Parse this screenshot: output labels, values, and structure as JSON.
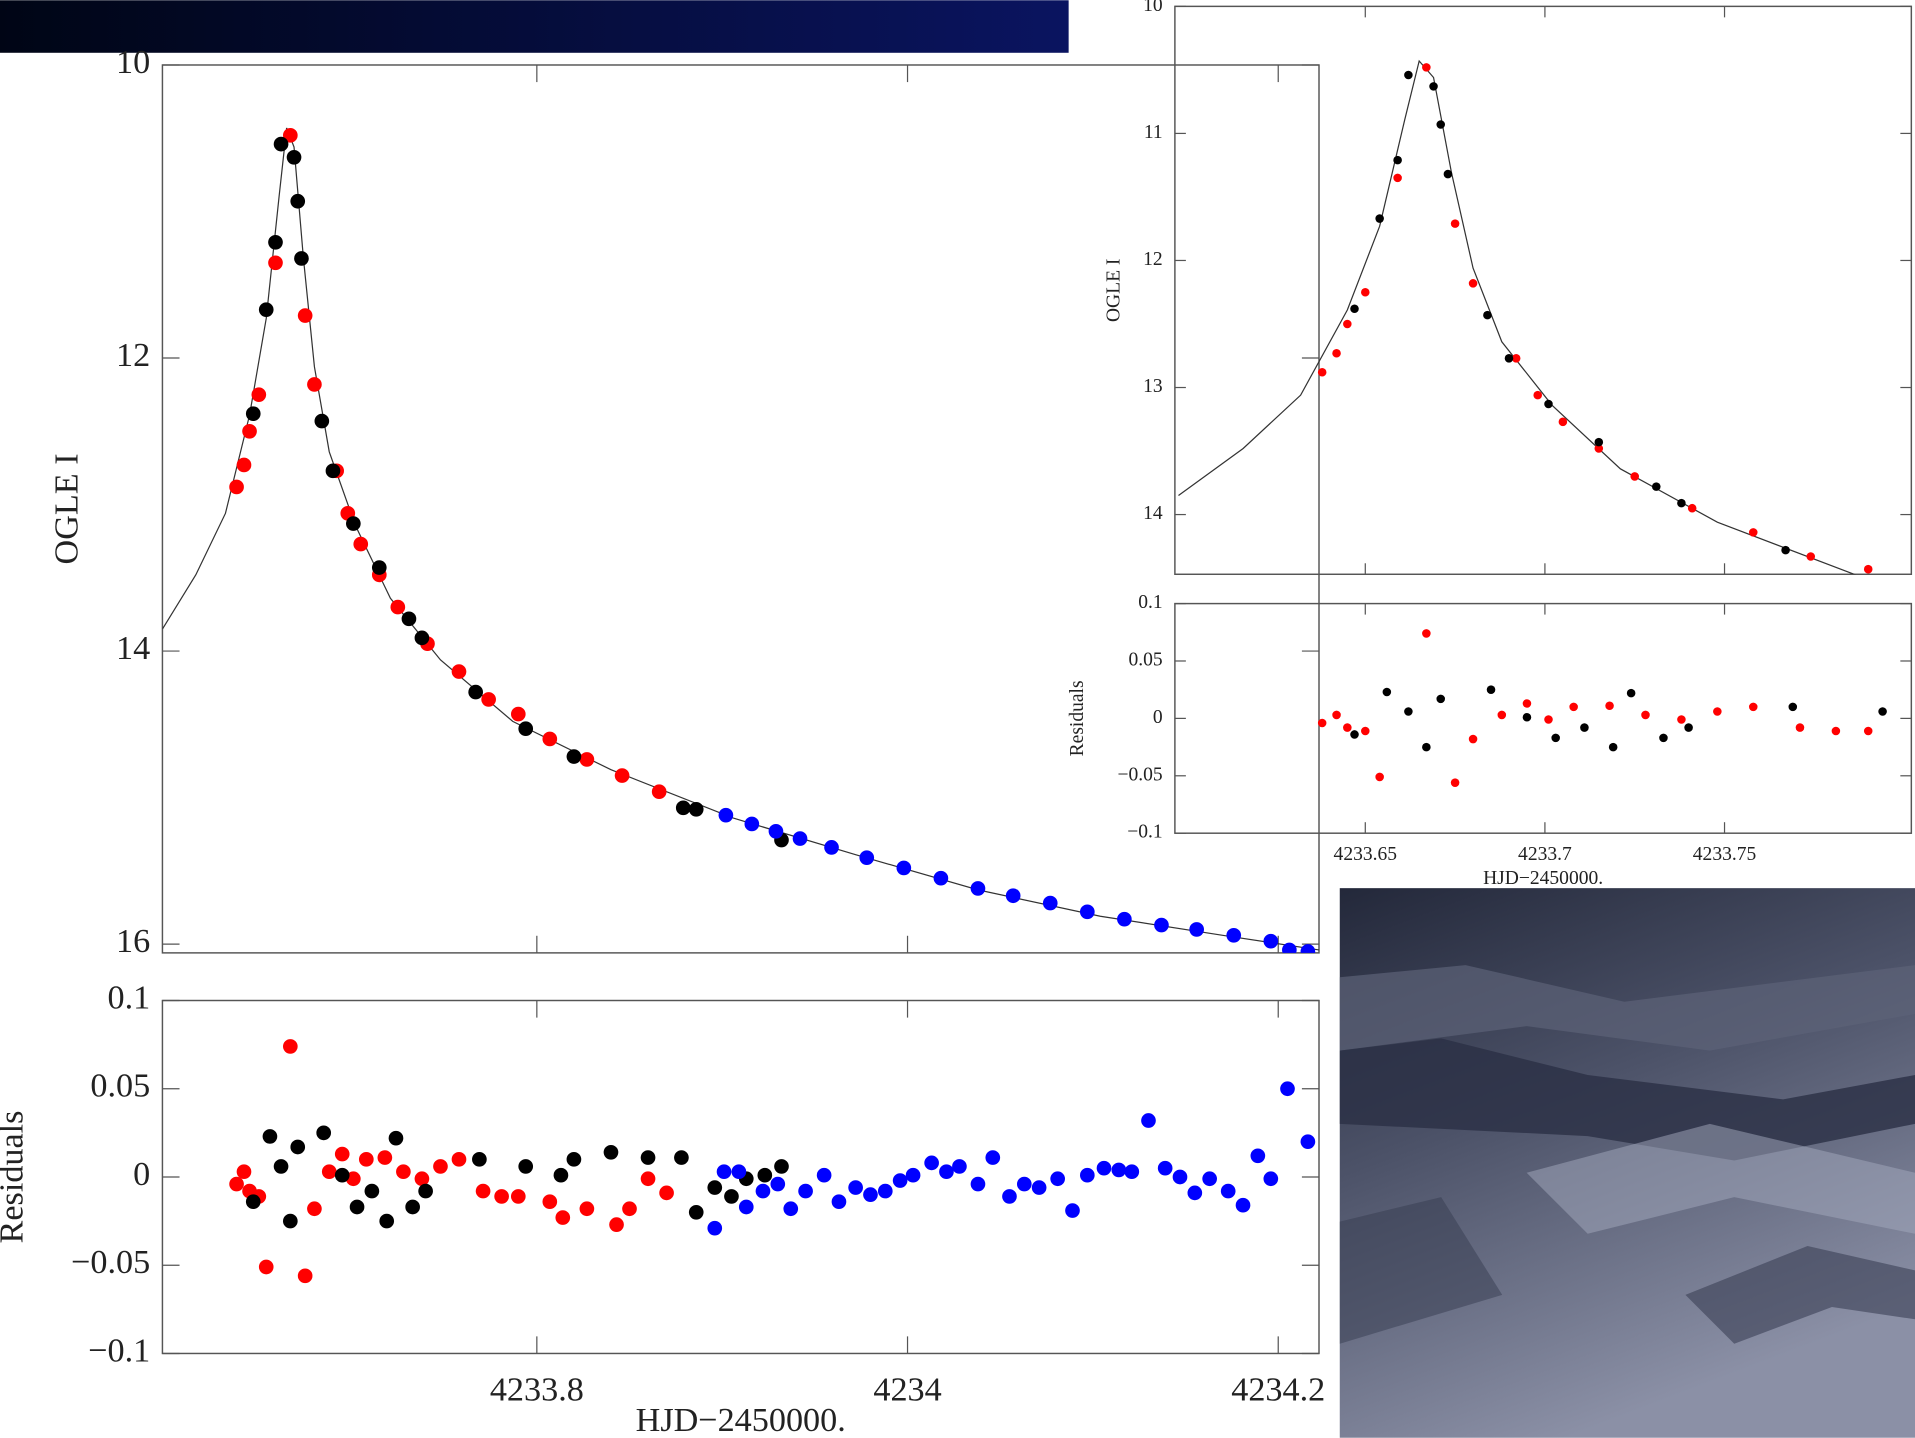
{
  "chart_data": [
    {
      "type": "scatter",
      "ylabel": "OGLE I",
      "xlim": [
        4233.598,
        4234.222
      ],
      "ylim": [
        10,
        16.06
      ],
      "y_inverted": true,
      "yticks": [
        10,
        12,
        14,
        16
      ],
      "series": [
        {
          "kind": "line",
          "color": "#333333",
          "x": [
            4233.598,
            4233.616,
            4233.632,
            4233.645,
            4233.654,
            4233.661,
            4233.665,
            4233.669,
            4233.674,
            4233.68,
            4233.688,
            4233.702,
            4233.721,
            4233.748,
            4233.787,
            4233.84,
            4233.906,
            4233.972,
            4234.038,
            4234.104,
            4234.17,
            4234.222
          ],
          "values": [
            13.85,
            13.48,
            13.06,
            12.39,
            11.73,
            10.89,
            10.43,
            10.56,
            11.31,
            12.06,
            12.64,
            13.14,
            13.64,
            14.06,
            14.48,
            14.81,
            15.14,
            15.39,
            15.63,
            15.81,
            15.94,
            16.04
          ]
        },
        {
          "kind": "points",
          "color": "#ff0000",
          "x": [
            4233.638,
            4233.642,
            4233.645,
            4233.65,
            4233.659,
            4233.667,
            4233.675,
            4233.68,
            4233.692,
            4233.698,
            4233.705,
            4233.715,
            4233.725,
            4233.741,
            4233.758,
            4233.774,
            4233.79,
            4233.807,
            4233.827,
            4233.846,
            4233.866
          ],
          "values": [
            12.88,
            12.73,
            12.5,
            12.25,
            11.35,
            10.48,
            11.71,
            12.18,
            12.77,
            13.06,
            13.27,
            13.48,
            13.7,
            13.95,
            14.14,
            14.33,
            14.43,
            14.6,
            14.74,
            14.85,
            14.96
          ]
        },
        {
          "kind": "points",
          "color": "#000000",
          "x": [
            4233.647,
            4233.654,
            4233.659,
            4233.662,
            4233.669,
            4233.671,
            4233.673,
            4233.684,
            4233.69,
            4233.701,
            4233.715,
            4233.731,
            4233.738,
            4233.767,
            4233.794,
            4233.82,
            4233.879,
            4233.886,
            4233.932
          ],
          "values": [
            12.38,
            11.67,
            11.21,
            10.54,
            10.63,
            10.93,
            11.32,
            12.43,
            12.77,
            13.13,
            13.43,
            13.78,
            13.91,
            14.28,
            14.53,
            14.72,
            15.07,
            15.08,
            15.29
          ]
        },
        {
          "kind": "points",
          "color": "#0000ff",
          "x": [
            4233.902,
            4233.916,
            4233.929,
            4233.942,
            4233.959,
            4233.978,
            4233.998,
            4234.018,
            4234.038,
            4234.057,
            4234.077,
            4234.097,
            4234.117,
            4234.137,
            4234.156,
            4234.176,
            4234.196,
            4234.206,
            4234.216
          ],
          "values": [
            15.12,
            15.18,
            15.23,
            15.28,
            15.34,
            15.41,
            15.48,
            15.55,
            15.62,
            15.67,
            15.72,
            15.78,
            15.83,
            15.87,
            15.9,
            15.94,
            15.98,
            16.04,
            16.05
          ]
        }
      ]
    },
    {
      "type": "scatter",
      "ylabel": "Residuals",
      "xlabel": "HJD−2450000.",
      "xlim": [
        4233.598,
        4234.222
      ],
      "ylim": [
        -0.1,
        0.1
      ],
      "xticks": [
        4233.8,
        4234,
        4234.2
      ],
      "yticks": [
        {
          "value": -0.1,
          "label": "−0.1"
        },
        {
          "value": -0.05,
          "label": "−0.05"
        },
        0,
        0.05,
        0.1
      ],
      "series": [
        {
          "kind": "points",
          "color": "#ff0000",
          "x": [
            4233.638,
            4233.642,
            4233.645,
            4233.65,
            4233.654,
            4233.667,
            4233.675,
            4233.68,
            4233.688,
            4233.695,
            4233.701,
            4233.708,
            4233.718,
            4233.728,
            4233.738,
            4233.748,
            4233.758,
            4233.771,
            4233.781,
            4233.79,
            4233.807,
            4233.814,
            4233.827,
            4233.843,
            4233.85,
            4233.86,
            4233.87
          ],
          "values": [
            -0.004,
            0.003,
            -0.008,
            -0.011,
            -0.051,
            0.074,
            -0.056,
            -0.018,
            0.003,
            0.013,
            -0.001,
            0.01,
            0.011,
            0.003,
            -0.001,
            0.006,
            0.01,
            -0.008,
            -0.011,
            -0.011,
            -0.014,
            -0.023,
            -0.018,
            -0.027,
            -0.018,
            -0.001,
            -0.009
          ]
        },
        {
          "kind": "points",
          "color": "#000000",
          "x": [
            4233.647,
            4233.656,
            4233.662,
            4233.667,
            4233.671,
            4233.685,
            4233.695,
            4233.703,
            4233.711,
            4233.719,
            4233.724,
            4233.733,
            4233.74,
            4233.769,
            4233.794,
            4233.813,
            4233.82,
            4233.84,
            4233.86,
            4233.878,
            4233.886,
            4233.896,
            4233.905,
            4233.913,
            4233.923,
            4233.932
          ],
          "values": [
            -0.014,
            0.023,
            0.006,
            -0.025,
            0.017,
            0.025,
            0.001,
            -0.017,
            -0.008,
            -0.025,
            0.022,
            -0.017,
            -0.008,
            0.01,
            0.006,
            0.001,
            0.01,
            0.014,
            0.011,
            0.011,
            -0.02,
            -0.006,
            -0.011,
            -0.001,
            0.001,
            0.006
          ]
        },
        {
          "kind": "points",
          "color": "#0000ff",
          "x": [
            4233.896,
            4233.901,
            4233.909,
            4233.913,
            4233.922,
            4233.93,
            4233.937,
            4233.945,
            4233.955,
            4233.963,
            4233.972,
            4233.98,
            4233.988,
            4233.996,
            4234.003,
            4234.013,
            4234.021,
            4234.028,
            4234.038,
            4234.046,
            4234.055,
            4234.063,
            4234.071,
            4234.081,
            4234.089,
            4234.097,
            4234.106,
            4234.114,
            4234.121,
            4234.13,
            4234.139,
            4234.147,
            4234.155,
            4234.163,
            4234.173,
            4234.181,
            4234.189,
            4234.196,
            4234.205,
            4234.216
          ],
          "values": [
            -0.029,
            0.003,
            0.003,
            -0.017,
            -0.008,
            -0.004,
            -0.018,
            -0.008,
            0.001,
            -0.014,
            -0.006,
            -0.01,
            -0.008,
            -0.002,
            0.001,
            0.008,
            0.003,
            0.006,
            -0.004,
            0.011,
            -0.011,
            -0.004,
            -0.006,
            -0.001,
            -0.019,
            0.001,
            0.005,
            0.004,
            0.003,
            0.032,
            0.005,
            0,
            -0.009,
            -0.001,
            -0.008,
            -0.016,
            0.012,
            -0.001,
            0.05,
            0.02
          ]
        }
      ]
    },
    {
      "type": "scatter",
      "ylabel": "OGLE I",
      "xlim": [
        4233.597,
        4233.802
      ],
      "ylim": [
        10,
        14.47
      ],
      "y_inverted": true,
      "yticks": [
        10,
        11,
        12,
        13,
        14
      ]
    },
    {
      "type": "scatter",
      "ylabel": "Residuals",
      "xlabel": "HJD−2450000.",
      "xlim": [
        4233.597,
        4233.802
      ],
      "ylim": [
        -0.1,
        0.1
      ],
      "xticks": [
        4233.65,
        4233.7,
        4233.75
      ],
      "yticks": [
        {
          "value": -0.1,
          "label": "−0.1"
        },
        {
          "value": -0.05,
          "label": "−0.05"
        },
        0,
        0.05,
        0.1
      ]
    }
  ]
}
